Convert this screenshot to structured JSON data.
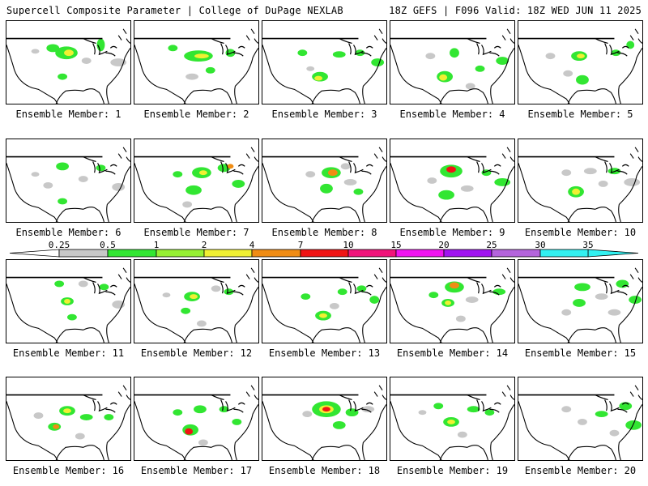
{
  "header": {
    "title": "Supercell Composite Parameter | College of DuPage NEXLAB",
    "run_info": "18Z GEFS | F096 Valid: 18Z WED JUN 11 2025"
  },
  "legend": {
    "ticks": [
      "0.25",
      "0.5",
      "1",
      "2",
      "4",
      "7",
      "10",
      "15",
      "20",
      "25",
      "30",
      "35"
    ],
    "colors": [
      "#c8c8c8",
      "#32e632",
      "#96f032",
      "#f0f032",
      "#f08c14",
      "#f01414",
      "#f0147a",
      "#f014f0",
      "#a014f0",
      "#b464dc",
      "#32f0f0"
    ]
  },
  "panels": [
    {
      "label": "Ensemble Member: 1"
    },
    {
      "label": "Ensemble Member: 2"
    },
    {
      "label": "Ensemble Member: 3"
    },
    {
      "label": "Ensemble Member: 4"
    },
    {
      "label": "Ensemble Member: 5"
    },
    {
      "label": "Ensemble Member: 6"
    },
    {
      "label": "Ensemble Member: 7"
    },
    {
      "label": "Ensemble Member: 8"
    },
    {
      "label": "Ensemble Member: 9"
    },
    {
      "label": "Ensemble Member: 10"
    },
    {
      "label": "Ensemble Member: 11"
    },
    {
      "label": "Ensemble Member: 12"
    },
    {
      "label": "Ensemble Member: 13"
    },
    {
      "label": "Ensemble Member: 14"
    },
    {
      "label": "Ensemble Member: 15"
    },
    {
      "label": "Ensemble Member: 16"
    },
    {
      "label": "Ensemble Member: 17"
    },
    {
      "label": "Ensemble Member: 18"
    },
    {
      "label": "Ensemble Member: 19"
    },
    {
      "label": "Ensemble Member: 20"
    }
  ]
}
